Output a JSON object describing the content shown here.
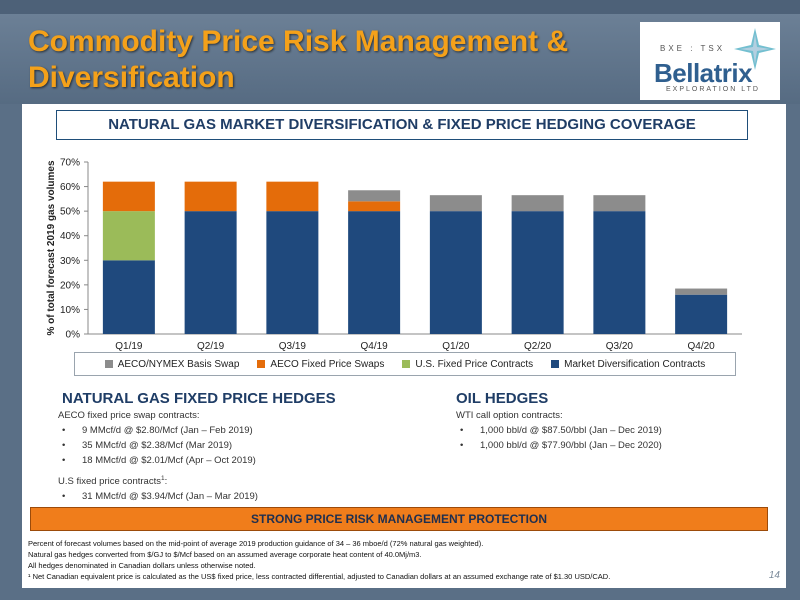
{
  "header": {
    "title_line1": "Commodity Price Risk Management &",
    "title_line2": "Diversification"
  },
  "logo": {
    "exchange": "BXE : TSX",
    "name": "Bellatrix",
    "tagline": "EXPLORATION LTD"
  },
  "chart_data": {
    "type": "bar",
    "stacked": true,
    "title": "NATURAL GAS MARKET DIVERSIFICATION & FIXED PRICE HEDGING COVERAGE",
    "ylabel": "% of total forecast 2019 gas volumes",
    "xlabel": "",
    "ylim": [
      0,
      70
    ],
    "yticks": [
      "0%",
      "10%",
      "20%",
      "30%",
      "40%",
      "50%",
      "60%",
      "70%"
    ],
    "grid": false,
    "legend_position": "bottom",
    "categories": [
      "Q1/19",
      "Q2/19",
      "Q3/19",
      "Q4/19",
      "Q1/20",
      "Q2/20",
      "Q3/20",
      "Q4/20"
    ],
    "series": [
      {
        "name": "Market Diversification Contracts",
        "color": "#1f497d",
        "values": [
          30,
          50,
          50,
          50,
          50,
          50,
          50,
          16
        ]
      },
      {
        "name": "U.S. Fixed Price Contracts",
        "color": "#9bbb59",
        "values": [
          20,
          0,
          0,
          0,
          0,
          0,
          0,
          0
        ]
      },
      {
        "name": "AECO Fixed Price Swaps",
        "color": "#e46c0a",
        "values": [
          12,
          12,
          12,
          4,
          0,
          0,
          0,
          0
        ]
      },
      {
        "name": "AECO/NYMEX Basis Swap",
        "color": "#8c8c8c",
        "values": [
          0,
          0,
          0,
          4.5,
          6.5,
          6.5,
          6.5,
          2.5
        ]
      }
    ],
    "legend_order": [
      "AECO/NYMEX Basis Swap",
      "AECO Fixed Price Swaps",
      "U.S. Fixed Price Contracts",
      "Market Diversification Contracts"
    ]
  },
  "gas_hedges": {
    "title": "NATURAL GAS FIXED PRICE HEDGES",
    "aeco_label": "AECO fixed price swap contracts:",
    "aeco_items": [
      "9 MMcf/d @ $2.80/Mcf (Jan – Feb 2019)",
      "35 MMcf/d @ $2.38/Mcf (Mar 2019)",
      "18 MMcf/d @ $2.01/Mcf (Apr – Oct 2019)"
    ],
    "us_label": "U.S fixed price contracts",
    "us_label_sup": "1",
    "us_label_end": ":",
    "us_items": [
      "31 MMcf/d @ $3.94/Mcf (Jan – Mar 2019)"
    ]
  },
  "oil_hedges": {
    "title": "OIL HEDGES",
    "label": "WTI call option contracts:",
    "items": [
      "1,000 bbl/d @ $87.50/bbl (Jan – Dec 2019)",
      "1,000 bbl/d @ $77.90/bbl (Jan – Dec 2020)"
    ]
  },
  "banner": "STRONG PRICE RISK MANAGEMENT PROTECTION",
  "footnotes": [
    "Percent of forecast volumes based on the mid-point of average 2019 production guidance of 34 – 36 mboe/d (72% natural gas weighted).",
    "Natural gas hedges converted from $/GJ to $/Mcf based on an assumed average corporate heat content of 40.0Mj/m3.",
    "All hedges denominated in Canadian dollars unless otherwise noted.",
    "¹ Net Canadian equivalent price is calculated as the US$ fixed price, less contracted differential, adjusted to Canadian dollars at an assumed exchange rate of $1.30 USD/CAD."
  ],
  "page_number": "14"
}
